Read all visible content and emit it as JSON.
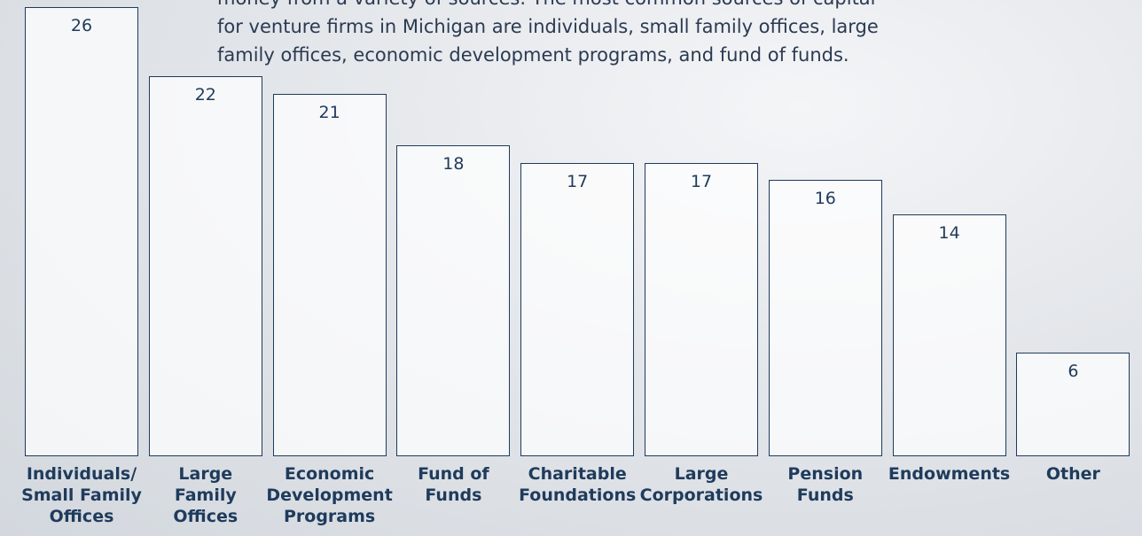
{
  "intro_lines": [
    "money from a variety of sources. The most common sources of capital",
    "for venture firms in Michigan are individuals, small family offices, large",
    "family offices, economic development programs, and fund of funds."
  ],
  "chart_data": {
    "type": "bar",
    "categories": [
      "Individuals/\nSmall Family\nOffices",
      "Large\nFamily\nOffices",
      "Economic\nDevelopment\nPrograms",
      "Fund of\nFunds",
      "Charitable\nFoundations",
      "Large\nCorporations",
      "Pension\nFunds",
      "Endowments",
      "Other"
    ],
    "values": [
      26,
      22,
      21,
      18,
      17,
      17,
      16,
      14,
      6
    ],
    "color": "#1f3b5c"
  }
}
